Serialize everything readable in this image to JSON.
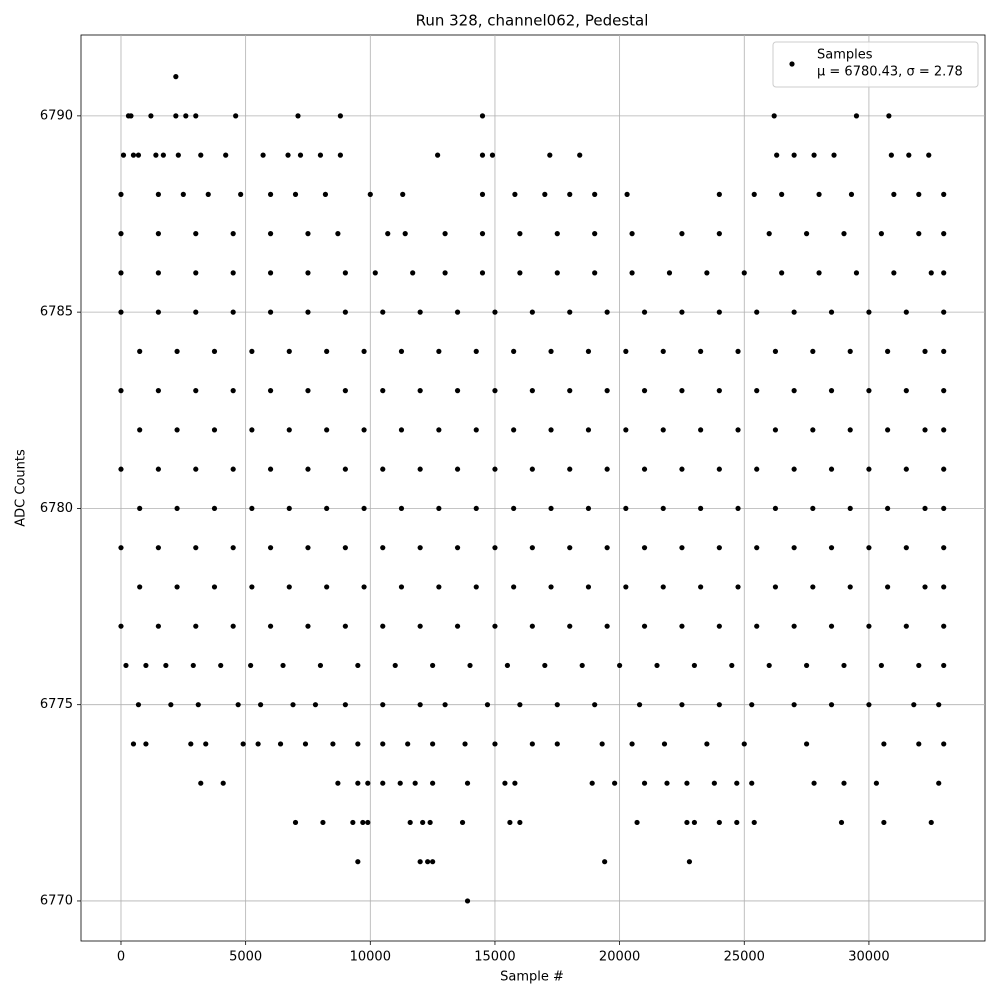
{
  "chart_data": {
    "type": "scatter",
    "title": "Run 328, channel062, Pedestal",
    "x_label": "Sample #",
    "y_label": "ADC Counts",
    "xlim": [
      -1604,
      34656
    ],
    "ylim": [
      6768.98,
      6792.06
    ],
    "xticks": [
      0,
      5000,
      10000,
      15000,
      20000,
      25000,
      30000
    ],
    "yticks": [
      6770,
      6775,
      6780,
      6785,
      6790
    ],
    "grid": true,
    "legend": "upper right",
    "legend_note": "μ = 6780.43, σ = 2.78",
    "series": [
      {
        "name": "Samples",
        "color": "#000000",
        "x": [
          2200,
          300,
          400,
          1200,
          2200,
          2600,
          3000,
          4600,
          7100,
          8800,
          14500,
          26200,
          29500,
          30800,
          100,
          500,
          700,
          1400,
          1700,
          2300,
          3200,
          4200,
          5700,
          6700,
          7200,
          8000,
          8800,
          12700,
          14500,
          14900,
          17200,
          18400,
          26300,
          27000,
          27800,
          28600,
          30900,
          31600,
          32400,
          0,
          1500,
          2500,
          3500,
          4800,
          6000,
          7000,
          8200,
          10000,
          11300,
          14500,
          15800,
          17000,
          18000,
          19000,
          20300,
          24000,
          25400,
          26500,
          28000,
          29300,
          31000,
          32000,
          33000,
          0,
          1500,
          3000,
          4500,
          6000,
          7500,
          8700,
          10700,
          11400,
          13000,
          14500,
          16000,
          17500,
          19000,
          20500,
          22500,
          24000,
          26000,
          27500,
          29000,
          30500,
          32000,
          33000,
          0,
          1500,
          3000,
          4500,
          6000,
          7500,
          9000,
          10200,
          11700,
          13000,
          14500,
          16000,
          17500,
          19000,
          20500,
          22000,
          23500,
          25000,
          26500,
          28000,
          29500,
          31000,
          32500,
          33000,
          0,
          1500,
          3000,
          4500,
          6000,
          7500,
          9000,
          10500,
          12000,
          13500,
          15000,
          16500,
          18000,
          19500,
          21000,
          22500,
          24000,
          25500,
          27000,
          28500,
          30000,
          31500,
          33000,
          750,
          2250,
          3750,
          5250,
          6750,
          8250,
          9750,
          11250,
          12750,
          14250,
          15750,
          17250,
          18750,
          20250,
          21750,
          23250,
          24750,
          26250,
          27750,
          29250,
          30750,
          32250,
          33000,
          0,
          1500,
          3000,
          4500,
          6000,
          7500,
          9000,
          10500,
          12000,
          13500,
          15000,
          16500,
          18000,
          19500,
          21000,
          22500,
          24000,
          25500,
          27000,
          28500,
          30000,
          31500,
          33000,
          750,
          2250,
          3750,
          5250,
          6750,
          8250,
          9750,
          11250,
          12750,
          14250,
          15750,
          17250,
          18750,
          20250,
          21750,
          23250,
          24750,
          26250,
          27750,
          29250,
          30750,
          32250,
          33000,
          0,
          1500,
          3000,
          4500,
          6000,
          7500,
          9000,
          10500,
          12000,
          13500,
          15000,
          16500,
          18000,
          19500,
          21000,
          22500,
          24000,
          25500,
          27000,
          28500,
          30000,
          31500,
          33000,
          750,
          2250,
          3750,
          5250,
          6750,
          8250,
          9750,
          11250,
          12750,
          14250,
          15750,
          17250,
          18750,
          20250,
          21750,
          23250,
          24750,
          26250,
          27750,
          29250,
          30750,
          32250,
          33000,
          0,
          1500,
          3000,
          4500,
          6000,
          7500,
          9000,
          10500,
          12000,
          13500,
          15000,
          16500,
          18000,
          19500,
          21000,
          22500,
          24000,
          25500,
          27000,
          28500,
          30000,
          31500,
          33000,
          750,
          2250,
          3750,
          5250,
          6750,
          8250,
          9750,
          11250,
          12750,
          14250,
          15750,
          17250,
          18750,
          20250,
          21750,
          23250,
          24750,
          26250,
          27750,
          29250,
          30750,
          32250,
          33000,
          0,
          1500,
          3000,
          4500,
          6000,
          7500,
          9000,
          10500,
          12000,
          13500,
          15000,
          16500,
          18000,
          19500,
          21000,
          22500,
          24000,
          25500,
          27000,
          28500,
          30000,
          31500,
          33000,
          200,
          1000,
          1800,
          2900,
          4000,
          5200,
          6500,
          8000,
          9500,
          11000,
          12500,
          14000,
          15500,
          17000,
          18500,
          20000,
          21500,
          23000,
          24500,
          26000,
          27500,
          29000,
          30500,
          32000,
          33000,
          700,
          2000,
          3100,
          4700,
          5600,
          6900,
          7800,
          9000,
          10500,
          12000,
          13000,
          14700,
          16000,
          17500,
          19000,
          20800,
          22500,
          24000,
          25300,
          27000,
          28500,
          30000,
          31800,
          32800,
          500,
          1000,
          2800,
          3400,
          4900,
          5500,
          6400,
          7400,
          8500,
          9500,
          10500,
          11500,
          12500,
          13800,
          15000,
          16500,
          17500,
          19300,
          20500,
          21800,
          23500,
          25000,
          27500,
          30600,
          32000,
          33000,
          3200,
          4100,
          8700,
          9500,
          9900,
          10500,
          11200,
          11800,
          12500,
          13900,
          15400,
          15800,
          18900,
          19800,
          21000,
          21900,
          22700,
          23800,
          24700,
          25300,
          27800,
          29000,
          30300,
          32800,
          7000,
          8100,
          9300,
          9700,
          9900,
          11600,
          12100,
          12400,
          13700,
          15600,
          16000,
          20700,
          22700,
          23000,
          24000,
          24700,
          25400,
          28900,
          30600,
          32500,
          9500,
          12000,
          12300,
          12500,
          19400,
          22800,
          13900
        ],
        "values": [
          6791,
          6790,
          6790,
          6790,
          6790,
          6790,
          6790,
          6790,
          6790,
          6790,
          6790,
          6790,
          6790,
          6790,
          6789,
          6789,
          6789,
          6789,
          6789,
          6789,
          6789,
          6789,
          6789,
          6789,
          6789,
          6789,
          6789,
          6789,
          6789,
          6789,
          6789,
          6789,
          6789,
          6789,
          6789,
          6789,
          6789,
          6789,
          6789,
          6788,
          6788,
          6788,
          6788,
          6788,
          6788,
          6788,
          6788,
          6788,
          6788,
          6788,
          6788,
          6788,
          6788,
          6788,
          6788,
          6788,
          6788,
          6788,
          6788,
          6788,
          6788,
          6788,
          6788,
          6787,
          6787,
          6787,
          6787,
          6787,
          6787,
          6787,
          6787,
          6787,
          6787,
          6787,
          6787,
          6787,
          6787,
          6787,
          6787,
          6787,
          6787,
          6787,
          6787,
          6787,
          6787,
          6787,
          6786,
          6786,
          6786,
          6786,
          6786,
          6786,
          6786,
          6786,
          6786,
          6786,
          6786,
          6786,
          6786,
          6786,
          6786,
          6786,
          6786,
          6786,
          6786,
          6786,
          6786,
          6786,
          6786,
          6786,
          6785,
          6785,
          6785,
          6785,
          6785,
          6785,
          6785,
          6785,
          6785,
          6785,
          6785,
          6785,
          6785,
          6785,
          6785,
          6785,
          6785,
          6785,
          6785,
          6785,
          6785,
          6785,
          6785,
          6784,
          6784,
          6784,
          6784,
          6784,
          6784,
          6784,
          6784,
          6784,
          6784,
          6784,
          6784,
          6784,
          6784,
          6784,
          6784,
          6784,
          6784,
          6784,
          6784,
          6784,
          6784,
          6784,
          6783,
          6783,
          6783,
          6783,
          6783,
          6783,
          6783,
          6783,
          6783,
          6783,
          6783,
          6783,
          6783,
          6783,
          6783,
          6783,
          6783,
          6783,
          6783,
          6783,
          6783,
          6783,
          6783,
          6782,
          6782,
          6782,
          6782,
          6782,
          6782,
          6782,
          6782,
          6782,
          6782,
          6782,
          6782,
          6782,
          6782,
          6782,
          6782,
          6782,
          6782,
          6782,
          6782,
          6782,
          6782,
          6782,
          6781,
          6781,
          6781,
          6781,
          6781,
          6781,
          6781,
          6781,
          6781,
          6781,
          6781,
          6781,
          6781,
          6781,
          6781,
          6781,
          6781,
          6781,
          6781,
          6781,
          6781,
          6781,
          6781,
          6780,
          6780,
          6780,
          6780,
          6780,
          6780,
          6780,
          6780,
          6780,
          6780,
          6780,
          6780,
          6780,
          6780,
          6780,
          6780,
          6780,
          6780,
          6780,
          6780,
          6780,
          6780,
          6780,
          6779,
          6779,
          6779,
          6779,
          6779,
          6779,
          6779,
          6779,
          6779,
          6779,
          6779,
          6779,
          6779,
          6779,
          6779,
          6779,
          6779,
          6779,
          6779,
          6779,
          6779,
          6779,
          6779,
          6778,
          6778,
          6778,
          6778,
          6778,
          6778,
          6778,
          6778,
          6778,
          6778,
          6778,
          6778,
          6778,
          6778,
          6778,
          6778,
          6778,
          6778,
          6778,
          6778,
          6778,
          6778,
          6778,
          6777,
          6777,
          6777,
          6777,
          6777,
          6777,
          6777,
          6777,
          6777,
          6777,
          6777,
          6777,
          6777,
          6777,
          6777,
          6777,
          6777,
          6777,
          6777,
          6777,
          6777,
          6777,
          6777,
          6776,
          6776,
          6776,
          6776,
          6776,
          6776,
          6776,
          6776,
          6776,
          6776,
          6776,
          6776,
          6776,
          6776,
          6776,
          6776,
          6776,
          6776,
          6776,
          6776,
          6776,
          6776,
          6776,
          6776,
          6776,
          6775,
          6775,
          6775,
          6775,
          6775,
          6775,
          6775,
          6775,
          6775,
          6775,
          6775,
          6775,
          6775,
          6775,
          6775,
          6775,
          6775,
          6775,
          6775,
          6775,
          6775,
          6775,
          6775,
          6775,
          6774,
          6774,
          6774,
          6774,
          6774,
          6774,
          6774,
          6774,
          6774,
          6774,
          6774,
          6774,
          6774,
          6774,
          6774,
          6774,
          6774,
          6774,
          6774,
          6774,
          6774,
          6774,
          6774,
          6774,
          6774,
          6774,
          6773,
          6773,
          6773,
          6773,
          6773,
          6773,
          6773,
          6773,
          6773,
          6773,
          6773,
          6773,
          6773,
          6773,
          6773,
          6773,
          6773,
          6773,
          6773,
          6773,
          6773,
          6773,
          6773,
          6773,
          6772,
          6772,
          6772,
          6772,
          6772,
          6772,
          6772,
          6772,
          6772,
          6772,
          6772,
          6772,
          6772,
          6772,
          6772,
          6772,
          6772,
          6772,
          6772,
          6772,
          6771,
          6771,
          6771,
          6771,
          6771,
          6771,
          6770
        ]
      }
    ]
  }
}
